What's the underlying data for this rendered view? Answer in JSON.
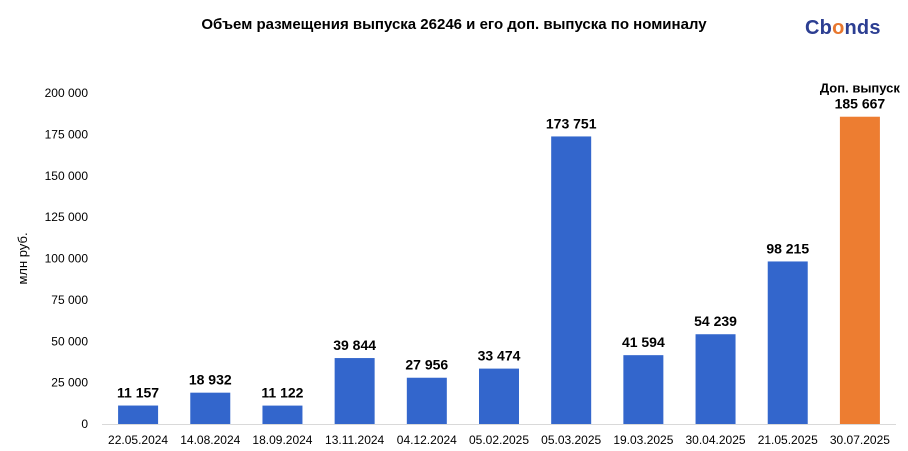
{
  "chart_data": {
    "type": "bar",
    "title": "Объем размещения выпуска 26246 и его доп. выпуска по номиналу",
    "ylabel": "млн руб.",
    "xlabel": "",
    "ylim": [
      0,
      200000
    ],
    "yticks": [
      0,
      25000,
      50000,
      75000,
      100000,
      125000,
      150000,
      175000,
      200000
    ],
    "ytick_labels": [
      "0",
      "25 000",
      "50 000",
      "75 000",
      "100 000",
      "125 000",
      "150 000",
      "175 000",
      "200 000"
    ],
    "categories": [
      "22.05.2024",
      "14.08.2024",
      "18.09.2024",
      "13.11.2024",
      "04.12.2024",
      "05.02.2025",
      "05.03.2025",
      "19.03.2025",
      "30.04.2025",
      "21.05.2025",
      "30.07.2025"
    ],
    "values": [
      11157,
      18932,
      11122,
      39844,
      27956,
      33474,
      173751,
      41594,
      54239,
      98215,
      185667
    ],
    "value_labels": [
      "11 157",
      "18 932",
      "11 122",
      "39 844",
      "27 956",
      "33 474",
      "173 751",
      "41 594",
      "54 239",
      "98 215",
      "185 667"
    ],
    "annotation": {
      "index": 10,
      "text": "Доп. выпуск"
    },
    "colors": {
      "main": "#3366cc",
      "additional": "#ed7d31"
    },
    "grid": false,
    "legend": "none"
  },
  "brand": {
    "logo_text_1": "Cb",
    "logo_text_2": "o",
    "logo_text_3": "nds"
  }
}
